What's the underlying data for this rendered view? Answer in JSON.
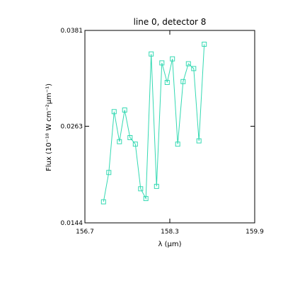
{
  "chart_data": {
    "type": "line",
    "title": "line 0, detector 8",
    "xlabel": "λ (μm)",
    "ylabel": "Flux (10⁻¹⁸ W cm⁻²μm⁻¹)",
    "xlim": [
      156.7,
      159.9
    ],
    "ylim": [
      0.0144,
      0.0381
    ],
    "x_ticks": [
      "156.7",
      "158.3",
      "159.9"
    ],
    "y_ticks": [
      "0.0144",
      "0.0263",
      "0.0381"
    ],
    "grid": false,
    "series": [
      {
        "color": "#33d9b2",
        "marker": "square",
        "x": [
          157.05,
          157.15,
          157.25,
          157.35,
          157.45,
          157.55,
          157.65,
          157.75,
          157.85,
          157.95,
          158.05,
          158.15,
          158.25,
          158.35,
          158.45,
          158.55,
          158.65,
          158.75,
          158.85,
          158.95,
          159.05
        ],
        "y": [
          0.017,
          0.0206,
          0.0281,
          0.0244,
          0.0283,
          0.0249,
          0.0241,
          0.0186,
          0.0174,
          0.0352,
          0.0189,
          0.0341,
          0.0317,
          0.0346,
          0.0241,
          0.0318,
          0.034,
          0.0334,
          0.0245,
          0.0364,
          null
        ]
      }
    ]
  }
}
